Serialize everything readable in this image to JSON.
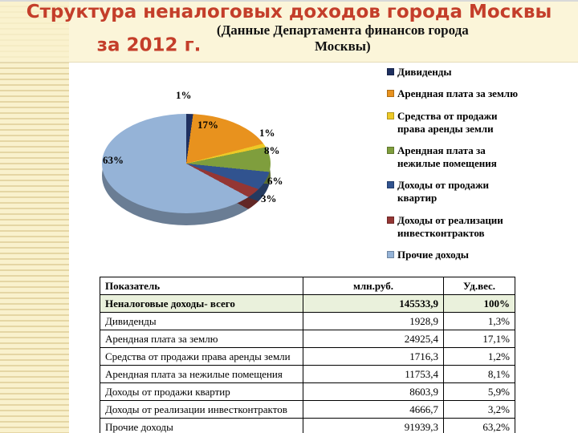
{
  "title": {
    "line1": "Структура неналоговых доходов города Москвы",
    "line2": "за 2012 г.",
    "subtitle": "(Данные Департамента финансов города Москвы)"
  },
  "chart_data": {
    "type": "pie",
    "title": "Структура неналоговых доходов города Москвы за 2012 г.",
    "labels": [
      "Дивиденды",
      "Арендная плата за землю",
      "Средства от продажи права аренды земли",
      "Арендная плата за нежилые помещения",
      "Доходы от продажи квартир",
      "Доходы от реализации инвестконтрактов",
      "Прочие доходы"
    ],
    "values": [
      1.3,
      17.1,
      1.2,
      8.1,
      5.9,
      3.2,
      63.2
    ],
    "display_labels": [
      "1%",
      "17%",
      "1%",
      "8%",
      "6%",
      "3%",
      "63%"
    ],
    "colors": [
      "#1F3060",
      "#E8921E",
      "#EDC927",
      "#7F9E3D",
      "#31538F",
      "#943634",
      "#95B3D7"
    ],
    "legend_position": "right"
  },
  "table": {
    "headers": [
      "Показатель",
      "млн.руб.",
      "Уд.вес."
    ],
    "rows": [
      {
        "label": "Неналоговые доходы- всего",
        "mln": "145533,9",
        "share": "100%",
        "emphasis": true
      },
      {
        "label": "Дивиденды",
        "mln": "1928,9",
        "share": "1,3%",
        "emphasis": false
      },
      {
        "label": "Арендная плата за землю",
        "mln": "24925,4",
        "share": "17,1%",
        "emphasis": false
      },
      {
        "label": "Средства от продажи права аренды земли",
        "mln": "1716,3",
        "share": "1,2%",
        "emphasis": false
      },
      {
        "label": "Арендная плата за нежилые помещения",
        "mln": "11753,4",
        "share": "8,1%",
        "emphasis": false
      },
      {
        "label": "Доходы от продажи квартир",
        "mln": "8603,9",
        "share": "5,9%",
        "emphasis": false
      },
      {
        "label": "Доходы от реализации инвестконтрактов",
        "mln": "4666,7",
        "share": "3,2%",
        "emphasis": false
      },
      {
        "label": "Прочие доходы",
        "mln": "91939,3",
        "share": "63,2%",
        "emphasis": false
      }
    ]
  }
}
